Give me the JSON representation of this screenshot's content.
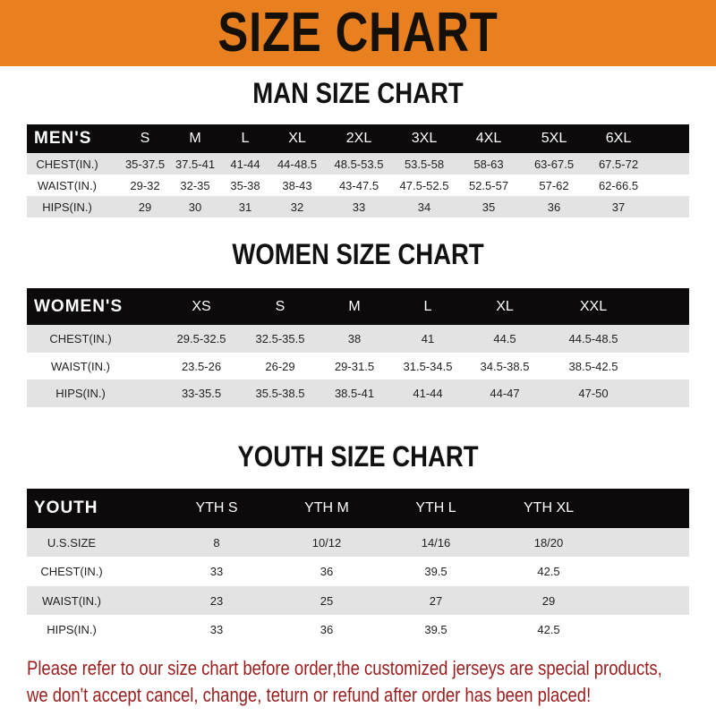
{
  "header": {
    "title": "SIZE CHART",
    "banner_color": "#E8801F"
  },
  "men": {
    "title": "MAN SIZE CHART",
    "columns": [
      "MEN'S",
      "S",
      "M",
      "L",
      "XL",
      "2XL",
      "3XL",
      "4XL",
      "5XL",
      "6XL"
    ],
    "rows": [
      [
        "CHEST(IN.)",
        "35-37.5",
        "37.5-41",
        "41-44",
        "44-48.5",
        "48.5-53.5",
        "53.5-58",
        "58-63",
        "63-67.5",
        "67.5-72"
      ],
      [
        "WAIST(IN.)",
        "29-32",
        "32-35",
        "35-38",
        "38-43",
        "43-47.5",
        "47.5-52.5",
        "52.5-57",
        "57-62",
        "62-66.5"
      ],
      [
        "HIPS(IN.)",
        "29",
        "30",
        "31",
        "32",
        "33",
        "34",
        "35",
        "36",
        "37"
      ]
    ]
  },
  "women": {
    "title": "WOMEN SIZE CHART",
    "columns": [
      "WOMEN'S",
      "XS",
      "S",
      "M",
      "L",
      "XL",
      "XXL"
    ],
    "rows": [
      [
        "CHEST(IN.)",
        "29.5-32.5",
        "32.5-35.5",
        "38",
        "41",
        "44.5",
        "44.5-48.5"
      ],
      [
        "WAIST(IN.)",
        "23.5-26",
        "26-29",
        "29-31.5",
        "31.5-34.5",
        "34.5-38.5",
        "38.5-42.5"
      ],
      [
        "HIPS(IN.)",
        "33-35.5",
        "35.5-38.5",
        "38.5-41",
        "41-44",
        "44-47",
        "47-50"
      ]
    ]
  },
  "youth": {
    "title": "YOUTH SIZE CHART",
    "columns": [
      "YOUTH",
      "YTH S",
      "YTH M",
      "YTH L",
      "YTH XL"
    ],
    "rows": [
      [
        "U.S.SIZE",
        "8",
        "10/12",
        "14/16",
        "18/20"
      ],
      [
        "CHEST(IN.)",
        "33",
        "36",
        "39.5",
        "42.5"
      ],
      [
        "WAIST(IN.)",
        "23",
        "25",
        "27",
        "29"
      ],
      [
        "HIPS(IN.)",
        "33",
        "36",
        "39.5",
        "42.5"
      ]
    ]
  },
  "footer": {
    "line1": "Please refer to our size chart before order,the customized jerseys are special products,",
    "line2": "we don't accept cancel, change, teturn or refund after order has been placed!",
    "color": "#9b1c1c"
  }
}
